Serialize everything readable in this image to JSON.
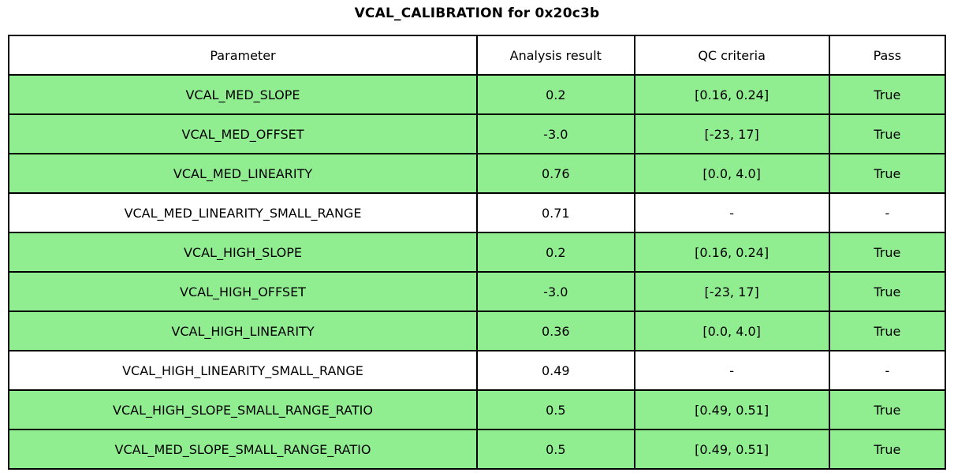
{
  "title": "VCAL_CALIBRATION for 0x20c3b",
  "colors": {
    "pass_row_green": "#90EE90",
    "default_row_white": "#FFFFFF",
    "border": "#000000",
    "text": "#000000"
  },
  "table": {
    "columns": [
      "Parameter",
      "Analysis result",
      "QC criteria",
      "Pass"
    ],
    "rows": [
      {
        "parameter": "VCAL_MED_SLOPE",
        "result": "0.2",
        "qc": "[0.16, 0.24]",
        "pass": "True",
        "highlight": true
      },
      {
        "parameter": "VCAL_MED_OFFSET",
        "result": "-3.0",
        "qc": "[-23, 17]",
        "pass": "True",
        "highlight": true
      },
      {
        "parameter": "VCAL_MED_LINEARITY",
        "result": "0.76",
        "qc": "[0.0, 4.0]",
        "pass": "True",
        "highlight": true
      },
      {
        "parameter": "VCAL_MED_LINEARITY_SMALL_RANGE",
        "result": "0.71",
        "qc": "-",
        "pass": "-",
        "highlight": false
      },
      {
        "parameter": "VCAL_HIGH_SLOPE",
        "result": "0.2",
        "qc": "[0.16, 0.24]",
        "pass": "True",
        "highlight": true
      },
      {
        "parameter": "VCAL_HIGH_OFFSET",
        "result": "-3.0",
        "qc": "[-23, 17]",
        "pass": "True",
        "highlight": true
      },
      {
        "parameter": "VCAL_HIGH_LINEARITY",
        "result": "0.36",
        "qc": "[0.0, 4.0]",
        "pass": "True",
        "highlight": true
      },
      {
        "parameter": "VCAL_HIGH_LINEARITY_SMALL_RANGE",
        "result": "0.49",
        "qc": "-",
        "pass": "-",
        "highlight": false
      },
      {
        "parameter": "VCAL_HIGH_SLOPE_SMALL_RANGE_RATIO",
        "result": "0.5",
        "qc": "[0.49, 0.51]",
        "pass": "True",
        "highlight": true
      },
      {
        "parameter": "VCAL_MED_SLOPE_SMALL_RANGE_RATIO",
        "result": "0.5",
        "qc": "[0.49, 0.51]",
        "pass": "True",
        "highlight": true
      }
    ]
  },
  "chart_data": {
    "type": "table",
    "title": "VCAL_CALIBRATION for 0x20c3b",
    "columns": [
      "Parameter",
      "Analysis result",
      "QC criteria",
      "Pass"
    ],
    "rows": [
      [
        "VCAL_MED_SLOPE",
        "0.2",
        "[0.16, 0.24]",
        "True"
      ],
      [
        "VCAL_MED_OFFSET",
        "-3.0",
        "[-23, 17]",
        "True"
      ],
      [
        "VCAL_MED_LINEARITY",
        "0.76",
        "[0.0, 4.0]",
        "True"
      ],
      [
        "VCAL_MED_LINEARITY_SMALL_RANGE",
        "0.71",
        "-",
        "-"
      ],
      [
        "VCAL_HIGH_SLOPE",
        "0.2",
        "[0.16, 0.24]",
        "True"
      ],
      [
        "VCAL_HIGH_OFFSET",
        "-3.0",
        "[-23, 17]",
        "True"
      ],
      [
        "VCAL_HIGH_LINEARITY",
        "0.36",
        "[0.0, 4.0]",
        "True"
      ],
      [
        "VCAL_HIGH_LINEARITY_SMALL_RANGE",
        "0.49",
        "-",
        "-"
      ],
      [
        "VCAL_HIGH_SLOPE_SMALL_RANGE_RATIO",
        "0.5",
        "[0.49, 0.51]",
        "True"
      ],
      [
        "VCAL_MED_SLOPE_SMALL_RANGE_RATIO",
        "0.5",
        "[0.49, 0.51]",
        "True"
      ]
    ],
    "layout_hints": {
      "highlighted_row_indices": [
        0,
        1,
        2,
        4,
        5,
        6,
        8,
        9
      ],
      "highlight_color": "#90EE90",
      "grid": true
    }
  }
}
